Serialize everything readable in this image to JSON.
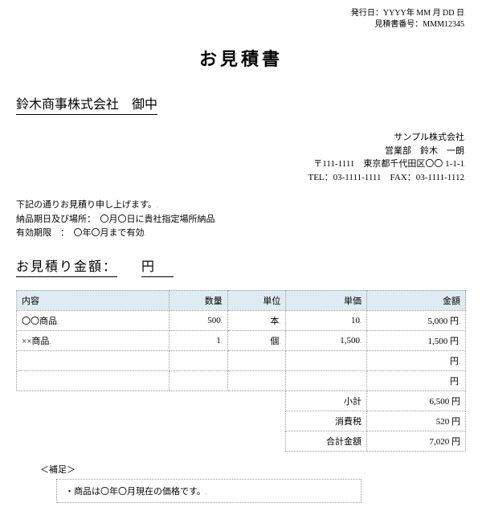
{
  "meta": {
    "issue_date": "発行日：YYYY年 MM 月 DD 日",
    "doc_number": "見積書番号：MMM12345"
  },
  "title": "お見積書",
  "addressee": "鈴木商事株式会社　御中",
  "sender": {
    "company": "サンプル株式会社",
    "dept_person": "営業部　鈴木　一朗",
    "address": "〒111-1111　東京都千代田区〇〇 1-1-1",
    "contact": "TEL：03-1111-1111　FAX：03-1111-1112"
  },
  "notes": {
    "l1": "下記の通りお見積り申し上げます。",
    "l2": "納品期日及び場所：　〇月〇日に貴社指定場所納品",
    "l3": "有効期限　：　〇年〇月まで有効"
  },
  "amount": {
    "label": "お見積り金額：",
    "value": "",
    "currency": "円"
  },
  "table": {
    "headers": {
      "desc": "内容",
      "qty": "数量",
      "unit": "単位",
      "price": "単価",
      "amt": "金額"
    },
    "rows": [
      {
        "desc": "〇〇商品",
        "qty": "500",
        "unit": "本",
        "price": "10",
        "amt": "5,000 円"
      },
      {
        "desc": "××商品",
        "qty": "1",
        "unit": "個",
        "price": "1,500",
        "amt": "1,500 円"
      },
      {
        "desc": "",
        "qty": "",
        "unit": "",
        "price": "",
        "amt": "円"
      },
      {
        "desc": "",
        "qty": "",
        "unit": "",
        "price": "",
        "amt": "円"
      }
    ],
    "summary": {
      "subtotal_label": "小計",
      "subtotal": "6,500 円",
      "tax_label": "消費税",
      "tax": "520 円",
      "total_label": "合計金額",
      "total": "7,020 円"
    }
  },
  "footnote": {
    "head": "＜補足＞",
    "body": "・商品は〇年〇月現在の価格です。"
  },
  "colors": {
    "header_bg": "#deebf0",
    "border": "#999999"
  }
}
